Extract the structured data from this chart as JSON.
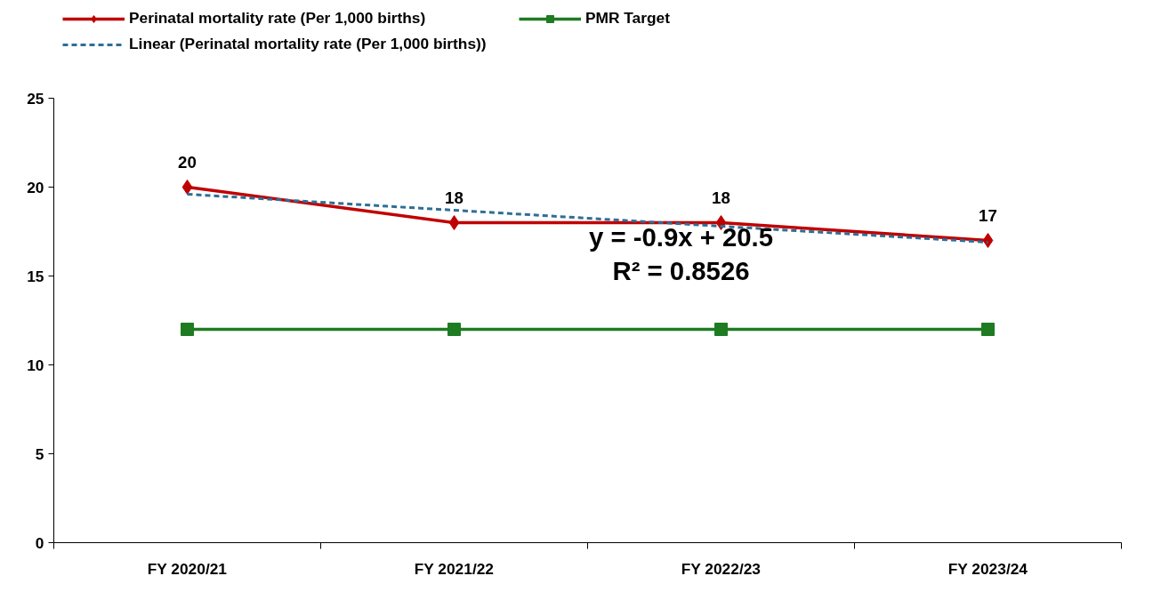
{
  "chart_data": {
    "type": "line",
    "categories": [
      "FY 2020/21",
      "FY 2021/22",
      "FY 2022/23",
      "FY 2023/24"
    ],
    "series": [
      {
        "name": "Perinatal mortality rate (Per 1,000 births)",
        "color": "#c00000",
        "values": [
          20,
          18,
          18,
          17
        ],
        "marker": "diamond",
        "line_style": "solid",
        "value_labels": [
          "20",
          "18",
          "18",
          "17"
        ]
      },
      {
        "name": "PMR Target",
        "color": "#1e7b22",
        "values": [
          12,
          12,
          12,
          12
        ],
        "marker": "square",
        "line_style": "solid"
      },
      {
        "name": "Linear (Perinatal mortality rate (Per 1,000 births))",
        "color": "#2e6e96",
        "x": [
          "FY 2020/21",
          "FY 2021/22",
          "FY 2022/23",
          "FY 2023/24"
        ],
        "values": [
          19.6,
          18.7,
          17.8,
          16.9
        ],
        "marker": "none",
        "line_style": "dashed"
      }
    ],
    "ylim": [
      0,
      25
    ],
    "yticks": [
      0,
      5,
      10,
      15,
      20,
      25
    ],
    "annotations": [
      "y = -0.9x + 20.5",
      "R² = 0.8526"
    ],
    "grid": false,
    "legend": "top"
  }
}
